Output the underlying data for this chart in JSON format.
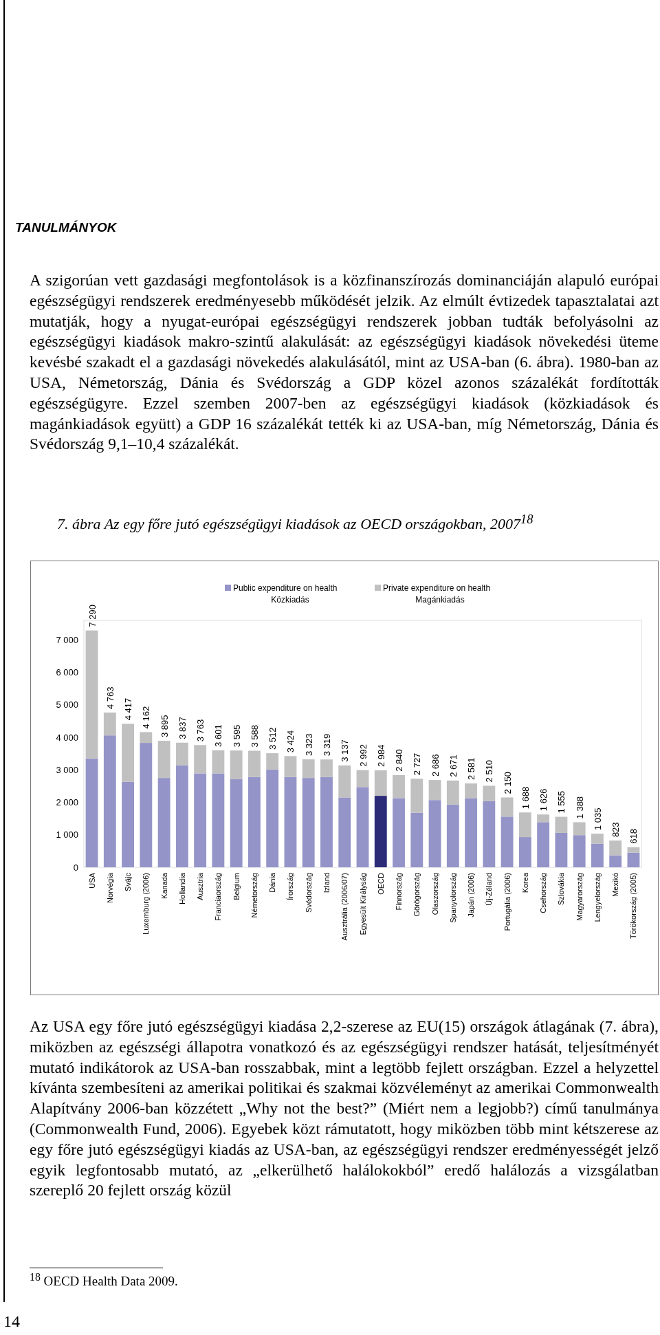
{
  "chart_data": {
    "type": "bar",
    "stacked": true,
    "title": "7. ábra Az egy főre jutó egészségügyi kiadások az OECD országokban, 2007$^{18}$",
    "categories": [
      "USA",
      "Norvégia",
      "Svájc",
      "Luxemburg (2006)",
      "Kanada",
      "Hollandia",
      "Ausztria",
      "Franciaország",
      "Belgium",
      "Németország",
      "Dánia",
      "Írország",
      "Svédország",
      "Izland",
      "Ausztrália (2006/07)",
      "Egyesült Királyság",
      "OECD",
      "Finnország",
      "Görögország",
      "Olaszország",
      "Spanyolország",
      "Japán (2006)",
      "Új-Zéland",
      "Portugália (2006)",
      "Korea",
      "Csehország",
      "Szlovákia",
      "Magyarország",
      "Lengyelország",
      "Mexikó",
      "Törökország (2005)"
    ],
    "series": [
      {
        "name": "Public expenditure on health\nKözkiadás",
        "color": "#9494c8",
        "colors": [
          "#9494c8",
          "#9494c8",
          "#9494c8",
          "#9494c8",
          "#9494c8",
          "#9494c8",
          "#9494c8",
          "#9494c8",
          "#9494c8",
          "#9494c8",
          "#9494c8",
          "#9494c8",
          "#9494c8",
          "#9494c8",
          "#9494c8",
          "#9494c8",
          "#2b2b78",
          "#9494c8",
          "#9494c8",
          "#9494c8",
          "#9494c8",
          "#9494c8",
          "#9494c8",
          "#9494c8",
          "#9494c8",
          "#9494c8",
          "#9494c8",
          "#9494c8",
          "#9494c8",
          "#9494c8",
          "#9494c8"
        ],
        "values": [
          3350,
          4060,
          2630,
          3830,
          2750,
          3140,
          2890,
          2890,
          2720,
          2780,
          3010,
          2780,
          2750,
          2780,
          2150,
          2470,
          2200,
          2130,
          1680,
          2070,
          1930,
          2130,
          2040,
          1560,
          930,
          1390,
          1060,
          990,
          730,
          370,
          450
        ]
      },
      {
        "name": "Private expenditure on health\nMagánkiadás",
        "color": "#c0c0c0",
        "values": [
          3940,
          703,
          1787,
          332,
          1145,
          697,
          873,
          711,
          875,
          808,
          502,
          644,
          573,
          539,
          987,
          522,
          784,
          710,
          1047,
          616,
          741,
          451,
          470,
          590,
          758,
          236,
          495,
          398,
          305,
          453,
          168
        ]
      }
    ],
    "totals": [
      "7 290",
      "4 763",
      "4 417",
      "4 162",
      "3 895",
      "3 837",
      "3 763",
      "3 601",
      "3 595",
      "3 588",
      "3 512",
      "3 424",
      "3 323",
      "3 319",
      "3 137",
      "2 992",
      "2 984",
      "2 840",
      "2 727",
      "2 686",
      "2 671",
      "2 581",
      "2 510",
      "2 150",
      "1 688",
      "1 626",
      "1 555",
      "1 388",
      "1 035",
      "823",
      "618"
    ],
    "ylim": [
      0,
      7600
    ],
    "yticks": [
      0,
      {
        "value": 1000,
        "label": "1 000"
      },
      {
        "value": 2000,
        "label": "2 000"
      },
      {
        "value": 3000,
        "label": "3 000"
      },
      {
        "value": 4000,
        "label": "4 000"
      },
      {
        "value": 5000,
        "label": "5 000"
      },
      {
        "value": 6000,
        "label": "6 000"
      },
      {
        "value": 7000,
        "label": "7 000"
      }
    ],
    "legend": "top",
    "annotations": [
      "TANULMÁNYOK",
      "A szigorúan vett gazdasági megfontolások is a közfinanszírozás dominanciáján alapuló európai egészségügyi rendszerek eredményesebb működését jelzik. Az elmúlt évtizedek tapasztalatai azt mutatják, hogy a nyugat-európai egészségügyi rendszerek jobban tudták befolyásolni az egészségügyi kiadások makro-szintű alakulását: az egészségügyi kiadások növekedési üteme kevésbé szakadt el a gazdasági növekedés alakulásától, mint az USA-ban (6. ábra). 1980-ban az USA, Németország, Dánia és Svédország a GDP közel azonos százalékát fordították egészségügyre. Ezzel szemben 2007-ben az egészségügyi kiadások (közkiadások és magánkiadások együtt) a GDP 16 százalékát tették ki az USA-ban, míg Németország, Dánia és Svédország 9,1–10,4 százalékát.",
      "Az USA egy főre jutó egészségügyi kiadása 2,2-szerese az EU(15) országok átlagának (7. ábra), miközben az egészségi állapotra vonatkozó és az egészségügyi rendszer hatását, teljesítményét mutató indikátorok az USA-ban rosszabbak, mint a legtöbb fejlett országban. Ezzel a helyzettel kívánta szembesíteni az amerikai politikai és szakmai közvéleményt az amerikai Commonwealth Alapítvány 2006-ban közzétett „Why not the best?” (Miért nem a legjobb?) című tanulmánya (Commonwealth Fund, 2006). Egyebek közt rámutatott, hogy miközben több mint kétszerese az egy főre jutó egészségügyi kiadás az USA-ban, az egészségügyi rendszer eredményességét jelző egyik legfontosabb mutató, az „elkerülhető halálokokból” eredő halálozás a vizsgálatban szereplő 20 fejlett ország közül",
      "$^{18}$ OECD Health Data 2009.",
      "14"
    ]
  }
}
